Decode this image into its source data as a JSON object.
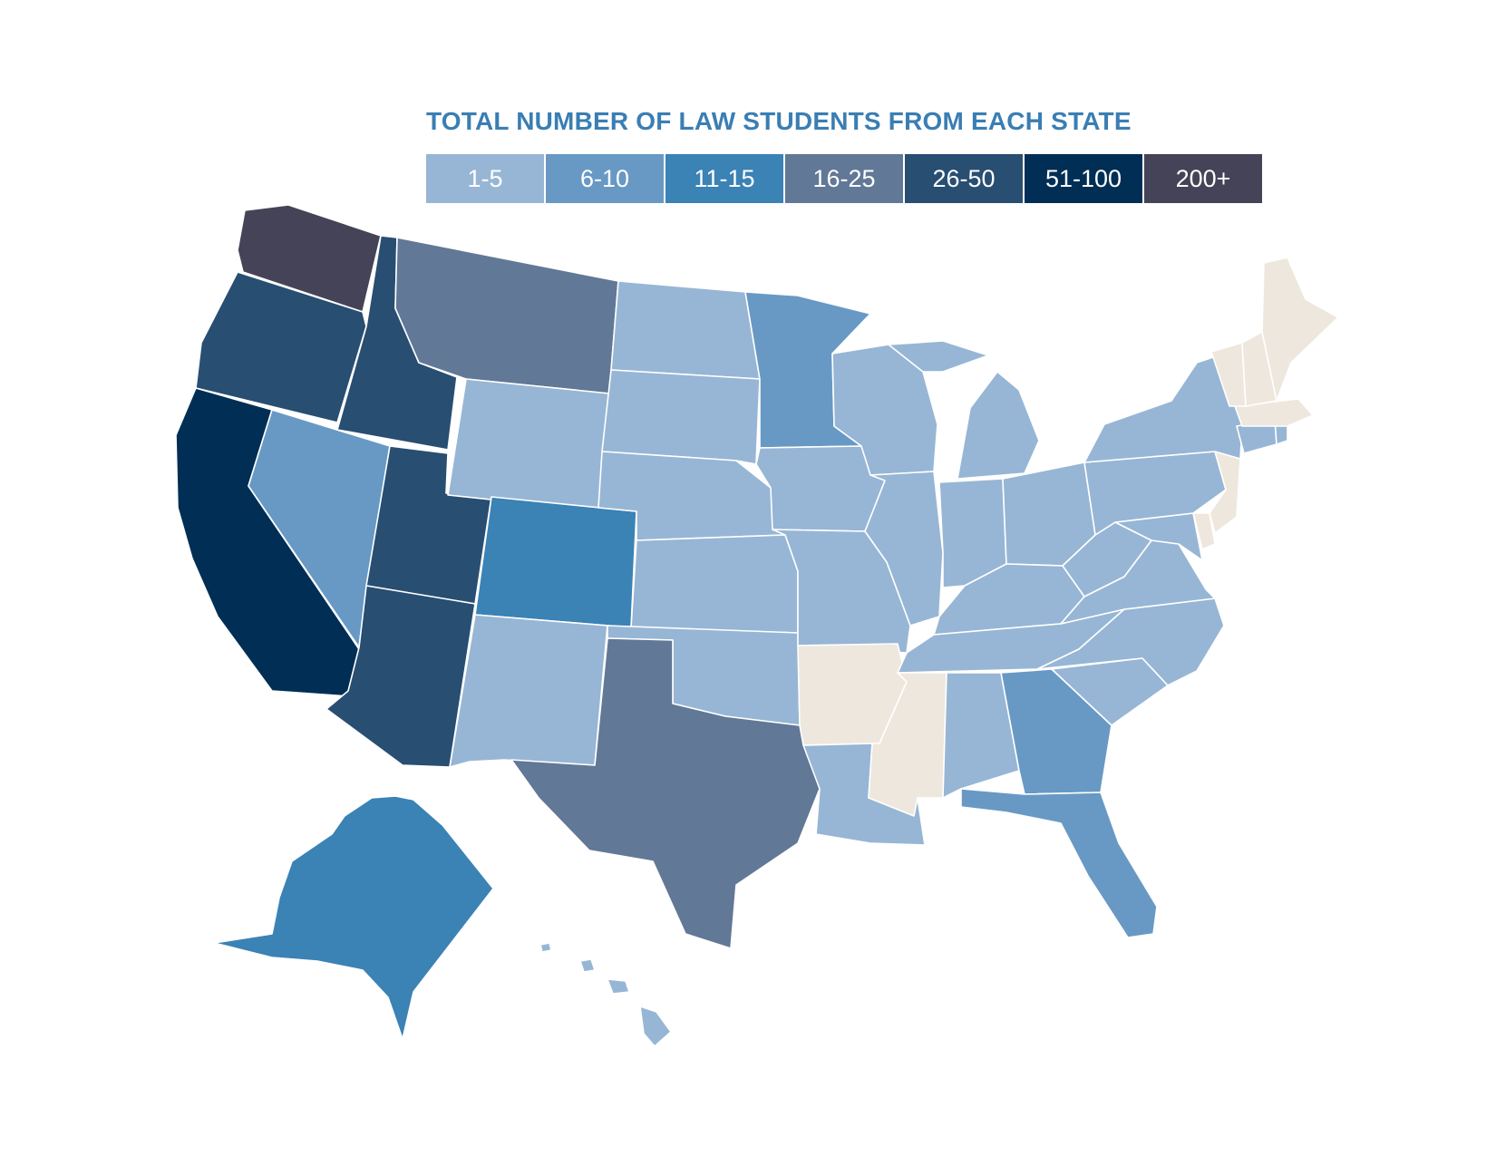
{
  "title": "TOTAL NUMBER OF LAW STUDENTS FROM EACH STATE",
  "legend": [
    {
      "label": "1-5",
      "color": "#97b6d5"
    },
    {
      "label": "6-10",
      "color": "#6899c4"
    },
    {
      "label": "11-15",
      "color": "#3b82b5"
    },
    {
      "label": "16-25",
      "color": "#617896"
    },
    {
      "label": "26-50",
      "color": "#284e72"
    },
    {
      "label": "51-100",
      "color": "#012e54"
    },
    {
      "label": "200+",
      "color": "#444357"
    }
  ],
  "no_data_color": "#eee7dd",
  "states": {
    "WA": "200+",
    "OR": "26-50",
    "CA": "51-100",
    "ID": "26-50",
    "NV": "6-10",
    "UT": "26-50",
    "AZ": "26-50",
    "MT": "16-25",
    "WY": "1-5",
    "CO": "11-15",
    "NM": "1-5",
    "ND": "1-5",
    "SD": "1-5",
    "NE": "1-5",
    "KS": "1-5",
    "OK": "1-5",
    "TX": "16-25",
    "MN": "6-10",
    "IA": "1-5",
    "MO": "1-5",
    "AR": "none",
    "LA": "1-5",
    "WI": "1-5",
    "IL": "1-5",
    "MI": "1-5",
    "IN": "1-5",
    "OH": "1-5",
    "KY": "1-5",
    "TN": "1-5",
    "MS": "none",
    "AL": "1-5",
    "GA": "6-10",
    "FL": "6-10",
    "SC": "1-5",
    "NC": "1-5",
    "VA": "1-5",
    "WV": "1-5",
    "MD": "1-5",
    "DE": "none",
    "PA": "1-5",
    "NJ": "none",
    "NY": "1-5",
    "CT": "1-5",
    "RI": "1-5",
    "MA": "none",
    "VT": "none",
    "NH": "none",
    "ME": "none",
    "AK": "11-15",
    "HI": "1-5"
  }
}
